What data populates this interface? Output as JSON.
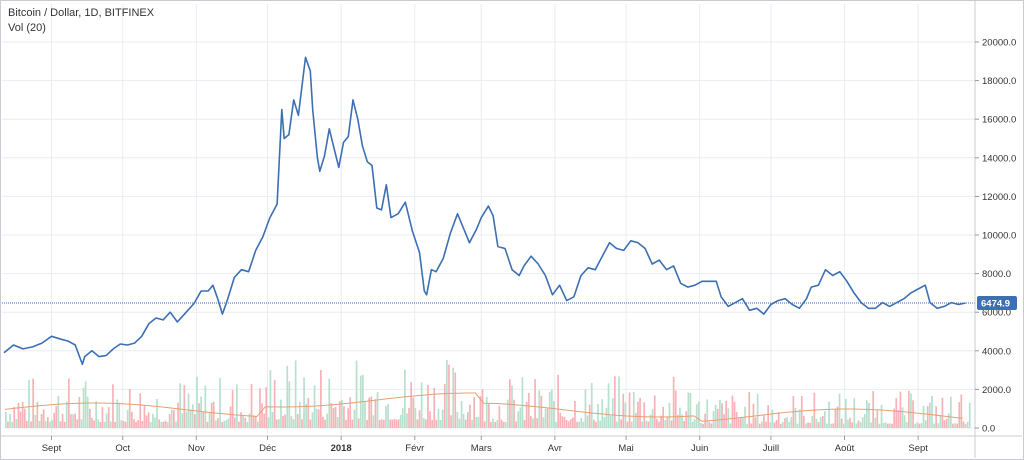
{
  "header": {
    "symbol_line": "Bitcoin / Dollar, 1D, BITFINEX",
    "volume_line": "Vol (20)"
  },
  "colors": {
    "price_line": "#3d6fb3",
    "volume_up": "#b7e0cd",
    "volume_down": "#f5b3b7",
    "volume_ma": "#e8a070",
    "last_price_line": "#3d6fb3",
    "grid": "#e9edf2"
  },
  "chart_data": {
    "type": "line",
    "title": "Bitcoin / Dollar, 1D, BITFINEX",
    "ylim": [
      0,
      21500
    ],
    "y_ticks": [
      "0.0",
      "2000.0",
      "4000.0",
      "6000.0",
      "8000.0",
      "10000.0",
      "12000.0",
      "14000.0",
      "16000.0",
      "18000.0",
      "20000.0"
    ],
    "x_ticks": [
      {
        "label": "Sept",
        "x": "2017-09-01",
        "bold": false
      },
      {
        "label": "Oct",
        "x": "2017-10-01",
        "bold": false
      },
      {
        "label": "Nov",
        "x": "2017-11-01",
        "bold": false
      },
      {
        "label": "Déc",
        "x": "2017-12-01",
        "bold": false
      },
      {
        "label": "2018",
        "x": "2018-01-01",
        "bold": true
      },
      {
        "label": "Févr",
        "x": "2018-02-01",
        "bold": false
      },
      {
        "label": "Mars",
        "x": "2018-03-01",
        "bold": false
      },
      {
        "label": "Avr",
        "x": "2018-04-01",
        "bold": false
      },
      {
        "label": "Mai",
        "x": "2018-05-01",
        "bold": false
      },
      {
        "label": "Juin",
        "x": "2018-06-01",
        "bold": false
      },
      {
        "label": "Juill",
        "x": "2018-07-01",
        "bold": false
      },
      {
        "label": "Août",
        "x": "2018-08-01",
        "bold": false
      },
      {
        "label": "Sept",
        "x": "2018-09-01",
        "bold": false
      }
    ],
    "last_price": 6474.9,
    "last_price_label": "6474.9",
    "grid": true,
    "series": [
      {
        "points": [
          [
            "2017-08-12",
            3900
          ],
          [
            "2017-08-16",
            4300
          ],
          [
            "2017-08-20",
            4100
          ],
          [
            "2017-08-24",
            4200
          ],
          [
            "2017-08-28",
            4400
          ],
          [
            "2017-09-01",
            4750
          ],
          [
            "2017-09-05",
            4600
          ],
          [
            "2017-09-08",
            4500
          ],
          [
            "2017-09-11",
            4300
          ],
          [
            "2017-09-14",
            3300
          ],
          [
            "2017-09-15",
            3700
          ],
          [
            "2017-09-18",
            4000
          ],
          [
            "2017-09-21",
            3700
          ],
          [
            "2017-09-24",
            3750
          ],
          [
            "2017-09-27",
            4100
          ],
          [
            "2017-09-30",
            4350
          ],
          [
            "2017-10-03",
            4300
          ],
          [
            "2017-10-06",
            4400
          ],
          [
            "2017-10-09",
            4750
          ],
          [
            "2017-10-12",
            5400
          ],
          [
            "2017-10-15",
            5700
          ],
          [
            "2017-10-18",
            5600
          ],
          [
            "2017-10-21",
            6000
          ],
          [
            "2017-10-24",
            5500
          ],
          [
            "2017-10-27",
            5900
          ],
          [
            "2017-10-31",
            6450
          ],
          [
            "2017-11-03",
            7100
          ],
          [
            "2017-11-06",
            7100
          ],
          [
            "2017-11-08",
            7400
          ],
          [
            "2017-11-10",
            6700
          ],
          [
            "2017-11-12",
            5900
          ],
          [
            "2017-11-14",
            6600
          ],
          [
            "2017-11-17",
            7800
          ],
          [
            "2017-11-20",
            8200
          ],
          [
            "2017-11-23",
            8100
          ],
          [
            "2017-11-26",
            9200
          ],
          [
            "2017-11-29",
            9900
          ],
          [
            "2017-12-02",
            10900
          ],
          [
            "2017-12-05",
            11600
          ],
          [
            "2017-12-07",
            16500
          ],
          [
            "2017-12-08",
            15000
          ],
          [
            "2017-12-10",
            15200
          ],
          [
            "2017-12-12",
            17000
          ],
          [
            "2017-12-14",
            16200
          ],
          [
            "2017-12-17",
            19200
          ],
          [
            "2017-12-19",
            18500
          ],
          [
            "2017-12-20",
            16500
          ],
          [
            "2017-12-22",
            14000
          ],
          [
            "2017-12-23",
            13300
          ],
          [
            "2017-12-25",
            14100
          ],
          [
            "2017-12-27",
            15500
          ],
          [
            "2017-12-29",
            14500
          ],
          [
            "2017-12-31",
            13500
          ],
          [
            "2018-01-02",
            14800
          ],
          [
            "2018-01-04",
            15100
          ],
          [
            "2018-01-06",
            17000
          ],
          [
            "2018-01-08",
            16000
          ],
          [
            "2018-01-10",
            14600
          ],
          [
            "2018-01-12",
            13800
          ],
          [
            "2018-01-14",
            13600
          ],
          [
            "2018-01-16",
            11400
          ],
          [
            "2018-01-18",
            11300
          ],
          [
            "2018-01-20",
            12600
          ],
          [
            "2018-01-22",
            10900
          ],
          [
            "2018-01-25",
            11100
          ],
          [
            "2018-01-28",
            11700
          ],
          [
            "2018-01-31",
            10200
          ],
          [
            "2018-02-03",
            9100
          ],
          [
            "2018-02-05",
            7100
          ],
          [
            "2018-02-06",
            6900
          ],
          [
            "2018-02-08",
            8200
          ],
          [
            "2018-02-10",
            8100
          ],
          [
            "2018-02-13",
            8800
          ],
          [
            "2018-02-16",
            10100
          ],
          [
            "2018-02-19",
            11100
          ],
          [
            "2018-02-21",
            10500
          ],
          [
            "2018-02-24",
            9600
          ],
          [
            "2018-02-27",
            10300
          ],
          [
            "2018-03-01",
            10900
          ],
          [
            "2018-03-04",
            11500
          ],
          [
            "2018-03-06",
            11000
          ],
          [
            "2018-03-08",
            9400
          ],
          [
            "2018-03-11",
            9300
          ],
          [
            "2018-03-14",
            8200
          ],
          [
            "2018-03-17",
            7900
          ],
          [
            "2018-03-19",
            8400
          ],
          [
            "2018-03-22",
            8900
          ],
          [
            "2018-03-25",
            8500
          ],
          [
            "2018-03-28",
            7900
          ],
          [
            "2018-03-31",
            6900
          ],
          [
            "2018-04-03",
            7400
          ],
          [
            "2018-04-06",
            6600
          ],
          [
            "2018-04-09",
            6800
          ],
          [
            "2018-04-12",
            7900
          ],
          [
            "2018-04-15",
            8300
          ],
          [
            "2018-04-18",
            8200
          ],
          [
            "2018-04-21",
            8900
          ],
          [
            "2018-04-24",
            9600
          ],
          [
            "2018-04-27",
            9300
          ],
          [
            "2018-04-30",
            9200
          ],
          [
            "2018-05-03",
            9700
          ],
          [
            "2018-05-06",
            9600
          ],
          [
            "2018-05-09",
            9300
          ],
          [
            "2018-05-12",
            8500
          ],
          [
            "2018-05-15",
            8700
          ],
          [
            "2018-05-18",
            8200
          ],
          [
            "2018-05-21",
            8400
          ],
          [
            "2018-05-24",
            7500
          ],
          [
            "2018-05-27",
            7300
          ],
          [
            "2018-05-30",
            7400
          ],
          [
            "2018-06-02",
            7600
          ],
          [
            "2018-06-05",
            7600
          ],
          [
            "2018-06-08",
            7600
          ],
          [
            "2018-06-10",
            6800
          ],
          [
            "2018-06-13",
            6300
          ],
          [
            "2018-06-16",
            6500
          ],
          [
            "2018-06-19",
            6700
          ],
          [
            "2018-06-22",
            6100
          ],
          [
            "2018-06-25",
            6200
          ],
          [
            "2018-06-28",
            5900
          ],
          [
            "2018-07-01",
            6400
          ],
          [
            "2018-07-04",
            6600
          ],
          [
            "2018-07-07",
            6700
          ],
          [
            "2018-07-10",
            6400
          ],
          [
            "2018-07-13",
            6200
          ],
          [
            "2018-07-16",
            6700
          ],
          [
            "2018-07-18",
            7300
          ],
          [
            "2018-07-21",
            7400
          ],
          [
            "2018-07-24",
            8200
          ],
          [
            "2018-07-27",
            7900
          ],
          [
            "2018-07-30",
            8100
          ],
          [
            "2018-08-02",
            7600
          ],
          [
            "2018-08-05",
            7000
          ],
          [
            "2018-08-08",
            6500
          ],
          [
            "2018-08-11",
            6200
          ],
          [
            "2018-08-14",
            6200
          ],
          [
            "2018-08-17",
            6500
          ],
          [
            "2018-08-20",
            6300
          ],
          [
            "2018-08-23",
            6500
          ],
          [
            "2018-08-26",
            6700
          ],
          [
            "2018-08-29",
            7000
          ],
          [
            "2018-09-01",
            7200
          ],
          [
            "2018-09-04",
            7400
          ],
          [
            "2018-09-06",
            6500
          ],
          [
            "2018-09-09",
            6200
          ],
          [
            "2018-09-12",
            6300
          ],
          [
            "2018-09-15",
            6500
          ],
          [
            "2018-09-18",
            6400
          ],
          [
            "2018-09-21",
            6474.9
          ]
        ]
      }
    ]
  }
}
